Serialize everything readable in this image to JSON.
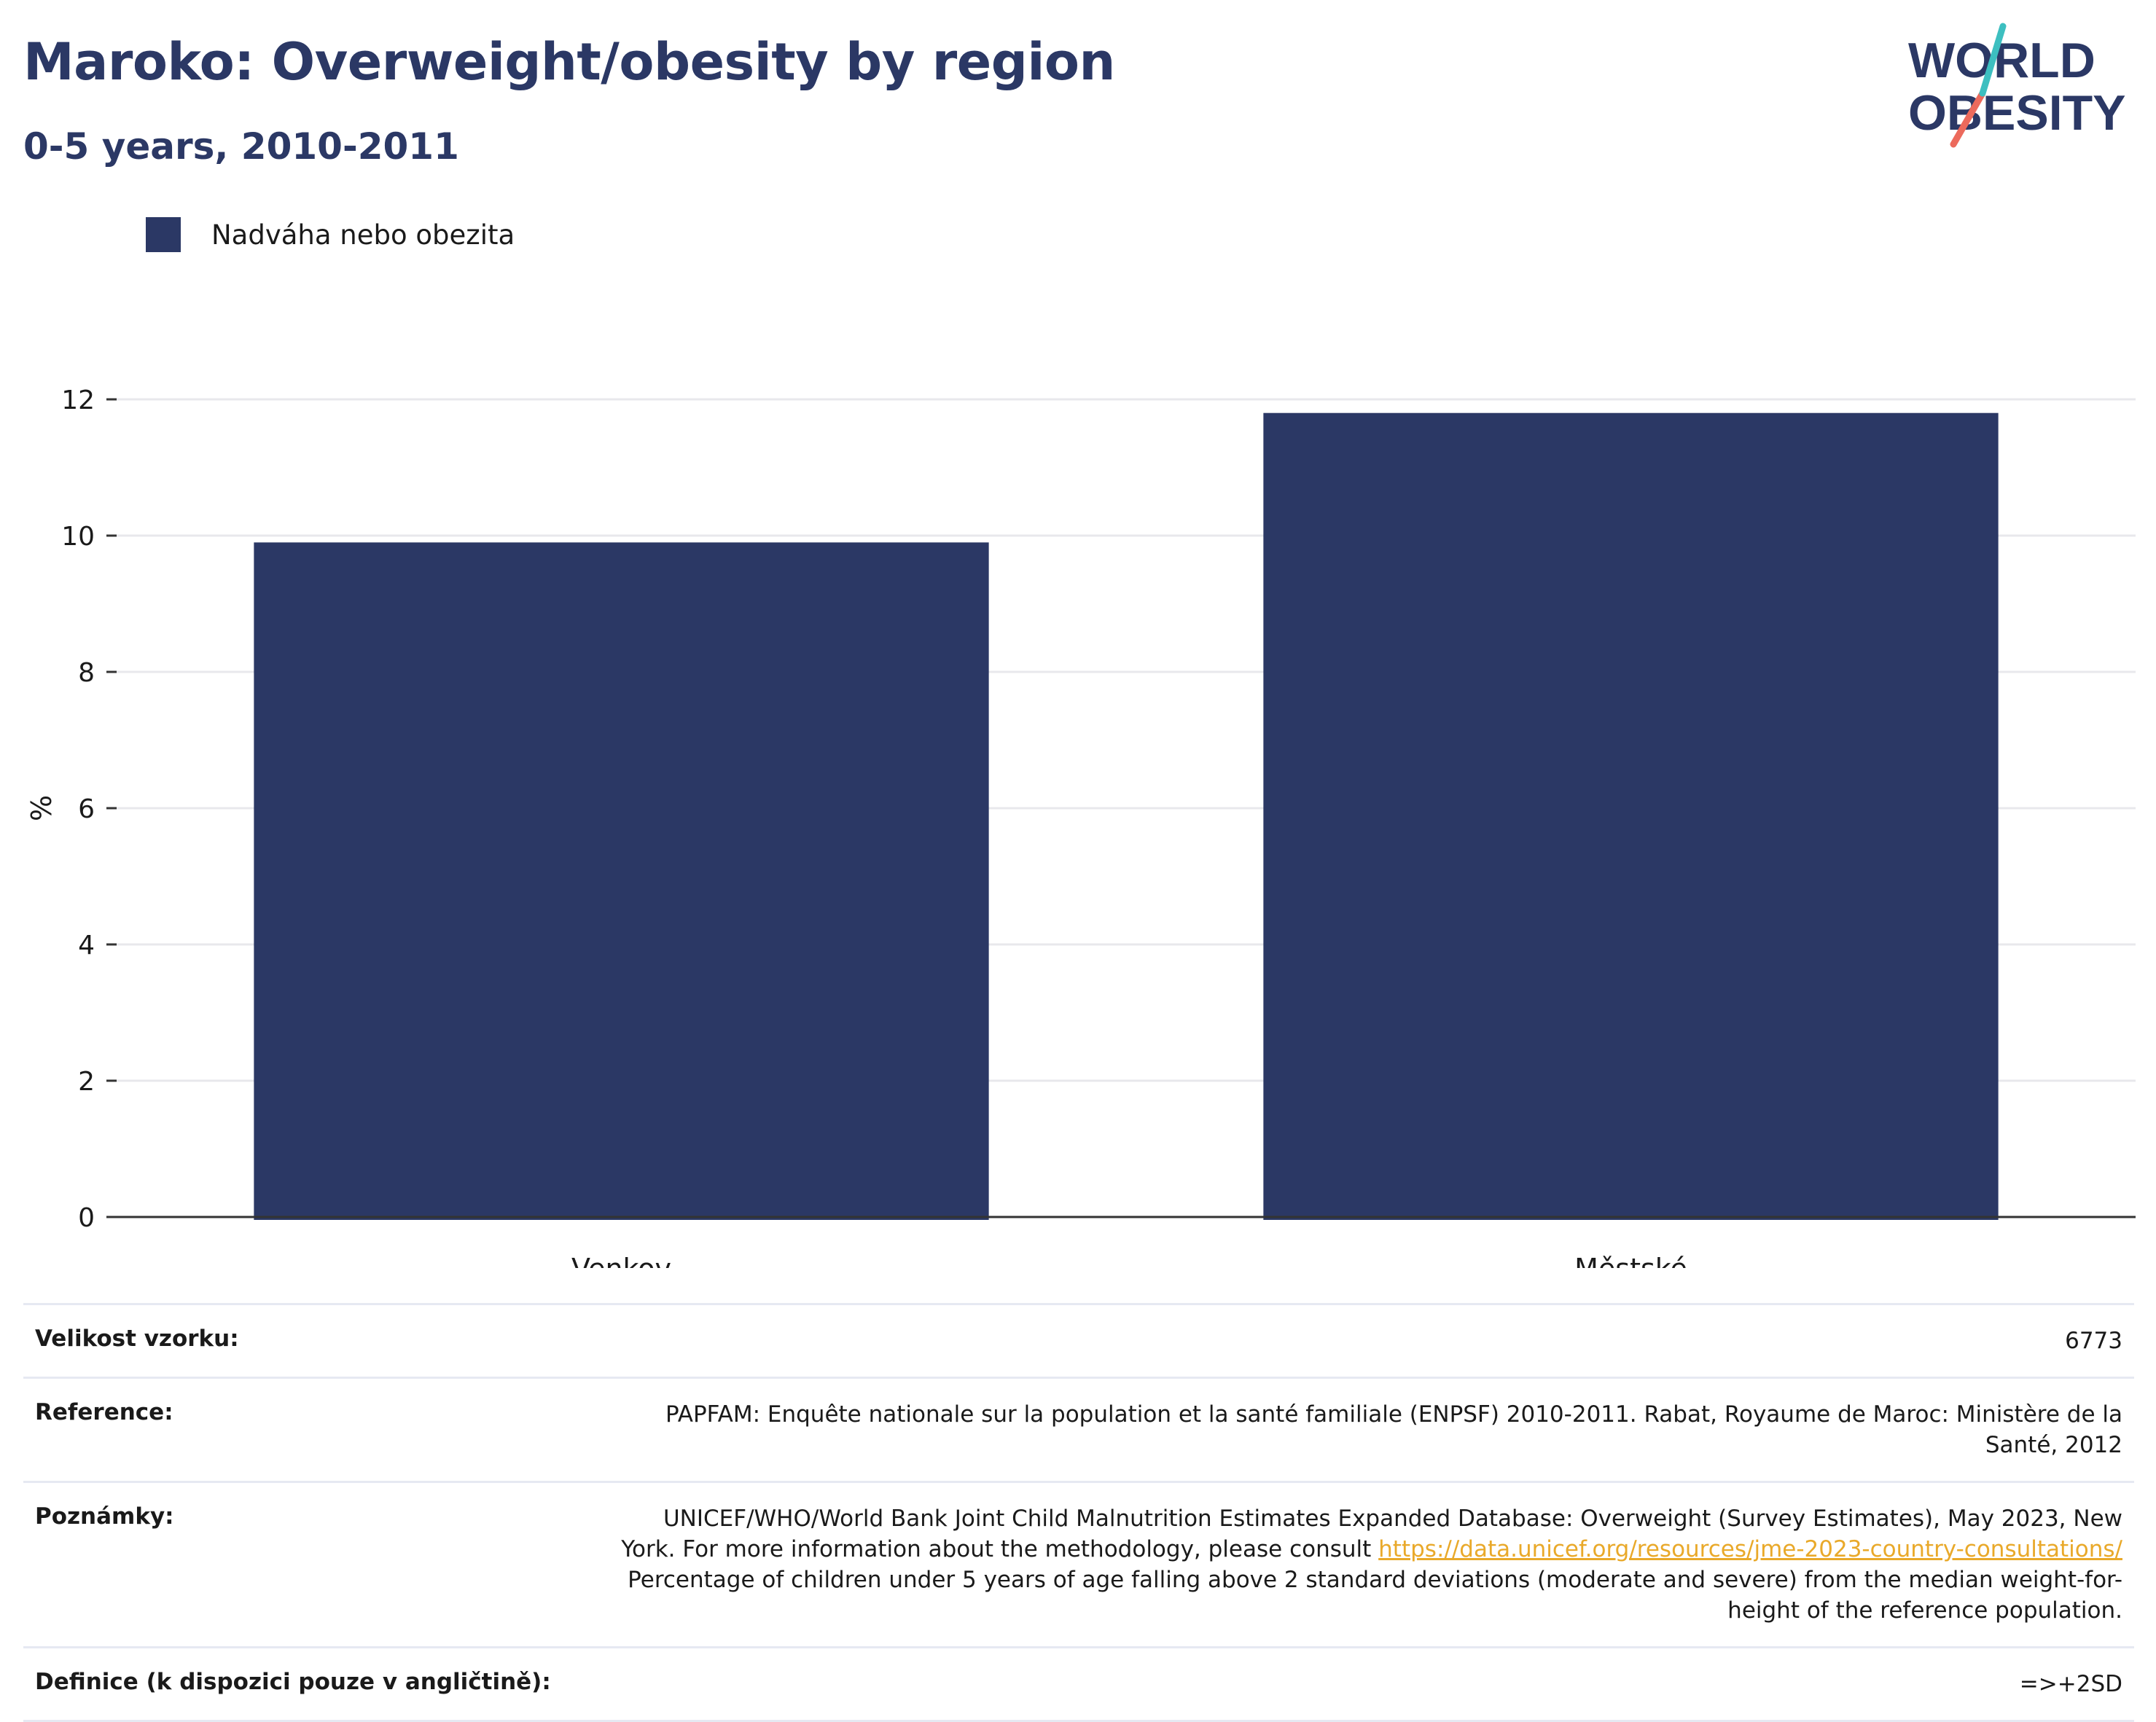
{
  "header": {
    "title": "Maroko: Overweight/obesity by region",
    "subtitle": "0-5 years, 2010-2011"
  },
  "logo": {
    "line1": "WORLD",
    "line2": "OBESITY",
    "colors": {
      "navy": "#2b3865",
      "teal": "#3dbfc0",
      "coral": "#ec6a5c"
    }
  },
  "legend": {
    "label": "Nadváha nebo obezita",
    "color": "#2b3865"
  },
  "chart_data": {
    "type": "bar",
    "categories": [
      "Venkov",
      "Městské"
    ],
    "series": [
      {
        "name": "Nadváha nebo obezita",
        "values": [
          9.9,
          11.8
        ],
        "color": "#2b3865"
      }
    ],
    "ylabel": "%",
    "xlabel": "",
    "ylim": [
      0,
      12
    ],
    "yticks": [
      "0",
      "2",
      "4",
      "6",
      "8",
      "10",
      "12"
    ],
    "grid": true,
    "legend_position": "top-left"
  },
  "meta": {
    "sample_size_label": "Velikost vzorku:",
    "sample_size_value": "6773",
    "reference_label": "Reference:",
    "reference_value": "PAPFAM: Enquête nationale sur la population et la santé familiale (ENPSF) 2010-2011. Rabat, Royaume de Maroc: Ministère de la Santé, 2012",
    "notes_label": "Poznámky:",
    "notes_text_before": "UNICEF/WHO/World Bank Joint Child Malnutrition Estimates Expanded Database: Overweight (Survey Estimates), May 2023, New York. For more information about the methodology, please consult ",
    "notes_link": "https://data.unicef.org/resources/jme-2023-country-consultations/",
    "notes_text_after": " Percentage of children under 5 years of age falling above 2 standard deviations (moderate and severe) from the median weight-for-height of the reference population.",
    "definition_label": "Definice (k dispozici pouze v angličtině):",
    "definition_value": "=>+2SD",
    "link_color": "#e9a92a"
  }
}
